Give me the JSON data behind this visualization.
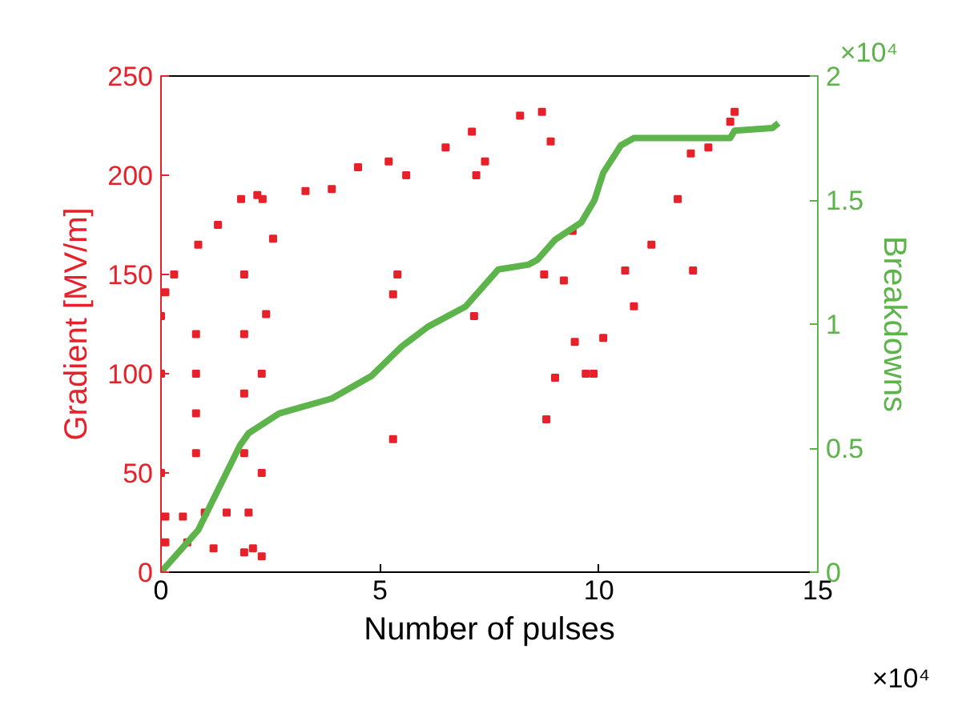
{
  "chart_data": {
    "type": "scatter",
    "xlabel": "Number of pulses",
    "ylabel": "Gradient [MV/m]",
    "y2label": "Breakdowns",
    "annotations": [
      "×10⁴",
      "×10⁴"
    ],
    "xlim": [
      0,
      15
    ],
    "xticks": [
      0,
      5,
      10,
      15
    ],
    "ylim": [
      0,
      250
    ],
    "yticks": [
      0,
      50,
      100,
      150,
      200,
      250
    ],
    "y2lim": [
      0,
      2
    ],
    "y2ticks": [
      0,
      0.5,
      1,
      1.5,
      2
    ],
    "grid": false,
    "series": [
      {
        "marker": "square",
        "color": "#e8202a",
        "x": [
          0,
          0,
          0,
          0.1,
          0.3,
          0.85,
          0.8,
          0.8,
          0.8,
          0.8,
          1.3,
          1.83,
          1.9,
          1.9,
          1.9,
          1.9,
          2.2,
          2.32,
          2.3,
          2.3,
          2.3,
          2.4,
          2.56,
          3.3,
          3.9,
          4.5,
          5.2,
          5.3,
          5.3,
          5.4,
          5.6,
          6.5,
          7.1,
          7.15,
          7.2,
          7.4,
          8.2,
          8.7,
          8.75,
          8.8,
          8.9,
          9.0,
          9.2,
          9.4,
          9.45,
          9.7,
          9.88,
          10.1,
          10.6,
          10.8,
          11.2,
          11.8,
          12.1,
          12.15,
          12.5,
          13.0,
          13.1,
          0.1,
          0.5,
          1.0,
          1.5,
          2.0,
          0.1,
          0.6,
          1.2,
          1.9,
          2.1
        ],
        "values": [
          129,
          100,
          50,
          141,
          150,
          165,
          120,
          100,
          80,
          60,
          175,
          188,
          150,
          120,
          90,
          60,
          190,
          188,
          100,
          50,
          8,
          130,
          168,
          192,
          193,
          204,
          207,
          140,
          67,
          150,
          200,
          214,
          222,
          129,
          200,
          207,
          230,
          232,
          150,
          77,
          217,
          98,
          147,
          172,
          116,
          100,
          100,
          118,
          152,
          134,
          165,
          188,
          211,
          152,
          214,
          227,
          232,
          28,
          28,
          30,
          30,
          30,
          15,
          15,
          12,
          10,
          12
        ]
      },
      {
        "type": "line",
        "marker": "none",
        "axis": "y2",
        "color": "#5cb44a",
        "x": [
          0,
          0.85,
          1.8,
          2.0,
          2.7,
          3.9,
          4.8,
          5.5,
          6.1,
          6.95,
          7.7,
          8.4,
          8.6,
          9.0,
          9.6,
          9.9,
          10.1,
          10.5,
          10.8,
          13.0,
          13.1,
          13.96,
          14.1
        ],
        "values": [
          0,
          0.17,
          0.51,
          0.56,
          0.64,
          0.7,
          0.79,
          0.91,
          0.99,
          1.07,
          1.22,
          1.24,
          1.26,
          1.34,
          1.41,
          1.5,
          1.61,
          1.72,
          1.75,
          1.75,
          1.78,
          1.79,
          1.81
        ]
      }
    ]
  }
}
